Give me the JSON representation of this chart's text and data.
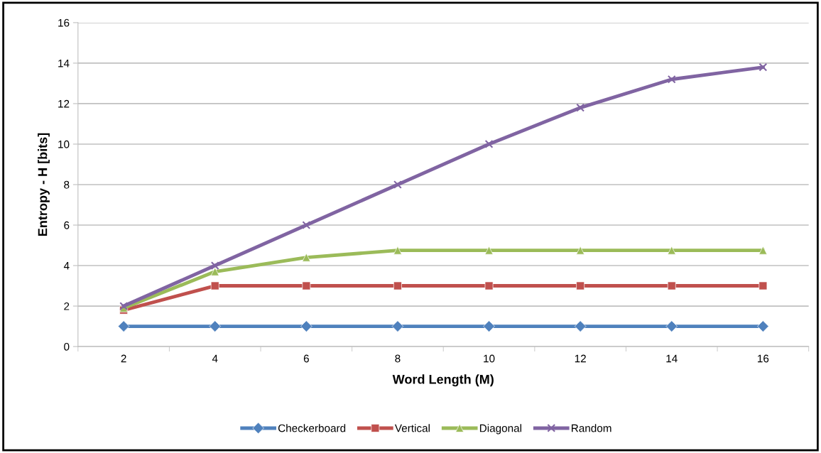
{
  "chart_data": {
    "type": "line",
    "xlabel": "Word Length (M)",
    "ylabel": "Entropy - H [bits]",
    "categories": [
      "2",
      "4",
      "6",
      "8",
      "10",
      "12",
      "14",
      "16"
    ],
    "series": [
      {
        "name": "Checkerboard",
        "color": "#4f81bd",
        "marker": "diamond",
        "values": [
          1,
          1,
          1,
          1,
          1,
          1,
          1,
          1
        ]
      },
      {
        "name": "Vertical",
        "color": "#c0504d",
        "marker": "square",
        "values": [
          1.8,
          3,
          3,
          3,
          3,
          3,
          3,
          3
        ]
      },
      {
        "name": "Diagonal",
        "color": "#9bbb59",
        "marker": "triangle",
        "values": [
          1.9,
          3.7,
          4.4,
          4.75,
          4.75,
          4.75,
          4.75,
          4.75
        ]
      },
      {
        "name": "Random",
        "color": "#8064a2",
        "marker": "cross",
        "values": [
          2,
          4,
          6,
          8,
          10,
          11.8,
          13.2,
          13.8
        ]
      }
    ],
    "ylim": [
      0,
      16
    ],
    "yticks": [
      0,
      2,
      4,
      6,
      8,
      10,
      12,
      14,
      16
    ],
    "grid": "y",
    "legend": "bottom",
    "line_style": "solid"
  }
}
